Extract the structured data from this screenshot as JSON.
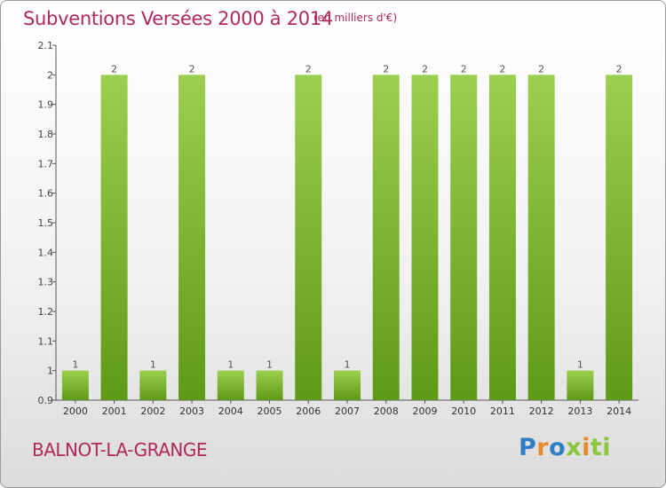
{
  "header": {
    "title": "Subventions Versées 2000 à 2014",
    "unit": "(en milliers d'€)"
  },
  "footer": {
    "commune": "BALNOT-LA-GRANGE",
    "brand": [
      "P",
      "r",
      "o",
      "x",
      "i",
      "ti"
    ]
  },
  "colors": {
    "bar_light": "#9ccf4f",
    "bar_dark": "#5e9a16",
    "text": "#b0285c",
    "axis": "#555555"
  },
  "chart_data": {
    "type": "bar",
    "categories": [
      "2000",
      "2001",
      "2002",
      "2003",
      "2004",
      "2005",
      "2006",
      "2007",
      "2008",
      "2009",
      "2010",
      "2011",
      "2012",
      "2013",
      "2014"
    ],
    "values": [
      1,
      2,
      1,
      2,
      1,
      1,
      2,
      1,
      2,
      2,
      2,
      2,
      2,
      1,
      2
    ],
    "data_labels": [
      "1",
      "2",
      "1",
      "2",
      "1",
      "1",
      "2",
      "1",
      "2",
      "2",
      "2",
      "2",
      "2",
      "1",
      "2"
    ],
    "title": "Subventions Versées 2000 à 2014",
    "ylabel": "",
    "xlabel": "",
    "ylim": [
      0.9,
      2.1
    ],
    "yticks": [
      0.9,
      1,
      1.1,
      1.2,
      1.3,
      1.4,
      1.5,
      1.6,
      1.7,
      1.8,
      1.9,
      2,
      2.1
    ],
    "ytick_labels": [
      "0.9",
      "1",
      "1.1",
      "1.2",
      "1.3",
      "1.4",
      "1.5",
      "1.6",
      "1.7",
      "1.8",
      "1.9",
      "2",
      "2.1"
    ],
    "grid": false,
    "legend": "none"
  }
}
